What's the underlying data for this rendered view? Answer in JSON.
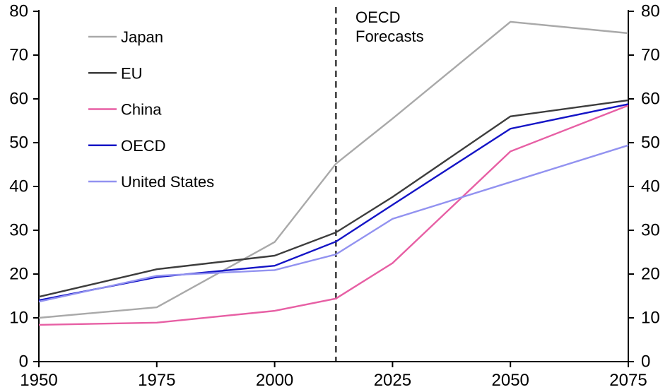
{
  "chart_data": {
    "type": "line",
    "title": "",
    "xlabel": "",
    "ylabel": "",
    "xlim": [
      1950,
      2075
    ],
    "ylim": [
      0,
      80
    ],
    "ytick_step": 10,
    "xticks": [
      1950,
      1975,
      2000,
      2025,
      2050,
      2075
    ],
    "grid": false,
    "legend_position": "top-left",
    "dual_y_axis": true,
    "axis_color": "#000000",
    "x": [
      1950,
      1975,
      2000,
      2013,
      2025,
      2050,
      2075
    ],
    "series": [
      {
        "name": "Japan",
        "color": "#a9a9a9",
        "values": [
          10.0,
          12.4,
          27.3,
          45.2,
          55.5,
          77.6,
          75.0
        ]
      },
      {
        "name": "EU",
        "color": "#3d3d3d",
        "values": [
          14.8,
          21.1,
          24.2,
          29.5,
          37.6,
          56.0,
          59.7
        ]
      },
      {
        "name": "China",
        "color": "#e75fa4",
        "values": [
          8.4,
          8.9,
          11.6,
          14.4,
          22.5,
          48.0,
          58.5
        ]
      },
      {
        "name": "OECD",
        "color": "#1414c6",
        "values": [
          14.0,
          19.3,
          21.9,
          27.4,
          35.8,
          53.2,
          58.8
        ]
      },
      {
        "name": "United States",
        "color": "#9292f0",
        "values": [
          13.7,
          19.6,
          20.9,
          24.5,
          32.6,
          41.0,
          49.4
        ]
      }
    ],
    "forecast_line": {
      "year": 2013,
      "style": "dashed",
      "color": "#000000",
      "label_lines": [
        "OECD",
        "Forecasts"
      ]
    }
  }
}
